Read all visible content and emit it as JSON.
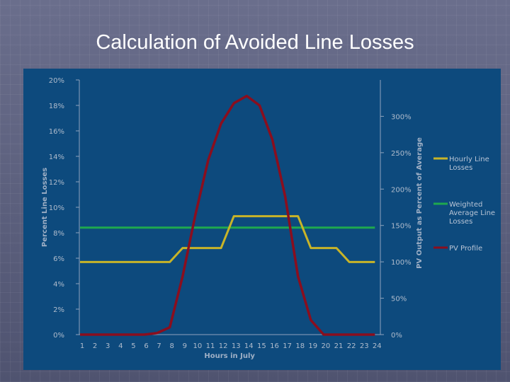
{
  "slide": {
    "title": "Calculation of Avoided Line Losses"
  },
  "colors": {
    "hourly": "#c8b428",
    "weighted": "#1fa84e",
    "pv": "#8a0e1e",
    "panel": "#0d4a7d"
  },
  "chart_data": {
    "type": "line",
    "title": "",
    "xlabel": "Hours in July",
    "ylabel": "Percent Line Losses",
    "y2label": "PV Output as Percent of Average",
    "categories": [
      "1",
      "2",
      "3",
      "4",
      "5",
      "6",
      "7",
      "8",
      "9",
      "10",
      "11",
      "12",
      "13",
      "14",
      "15",
      "16",
      "17",
      "18",
      "19",
      "20",
      "21",
      "22",
      "23",
      "24"
    ],
    "left_ticks": [
      "0%",
      "2%",
      "4%",
      "6%",
      "8%",
      "10%",
      "12%",
      "14%",
      "16%",
      "18%",
      "20%"
    ],
    "right_ticks": [
      "0%",
      "50%",
      "100%",
      "150%",
      "200%",
      "250%",
      "300%"
    ],
    "ylim": [
      0,
      20
    ],
    "y2lim": [
      0,
      350
    ],
    "grid": false,
    "legend_position": "right",
    "series": [
      {
        "name": "Hourly Line Losses",
        "axis": "left",
        "values": [
          5.7,
          5.7,
          5.7,
          5.7,
          5.7,
          5.7,
          5.7,
          5.7,
          6.8,
          6.8,
          6.8,
          6.8,
          9.3,
          9.3,
          9.3,
          9.3,
          9.3,
          9.3,
          6.8,
          6.8,
          6.8,
          5.7,
          5.7,
          5.7
        ]
      },
      {
        "name": "Weighted Average Line Losses",
        "axis": "left",
        "values": [
          8.4,
          8.4,
          8.4,
          8.4,
          8.4,
          8.4,
          8.4,
          8.4,
          8.4,
          8.4,
          8.4,
          8.4,
          8.4,
          8.4,
          8.4,
          8.4,
          8.4,
          8.4,
          8.4,
          8.4,
          8.4,
          8.4,
          8.4,
          8.4
        ]
      },
      {
        "name": "PV Profile",
        "axis": "right",
        "values": [
          0,
          0,
          0,
          0,
          0,
          0,
          2,
          10,
          80,
          165,
          240,
          290,
          318,
          328,
          315,
          268,
          190,
          80,
          20,
          0,
          0,
          0,
          0,
          0
        ]
      }
    ]
  }
}
